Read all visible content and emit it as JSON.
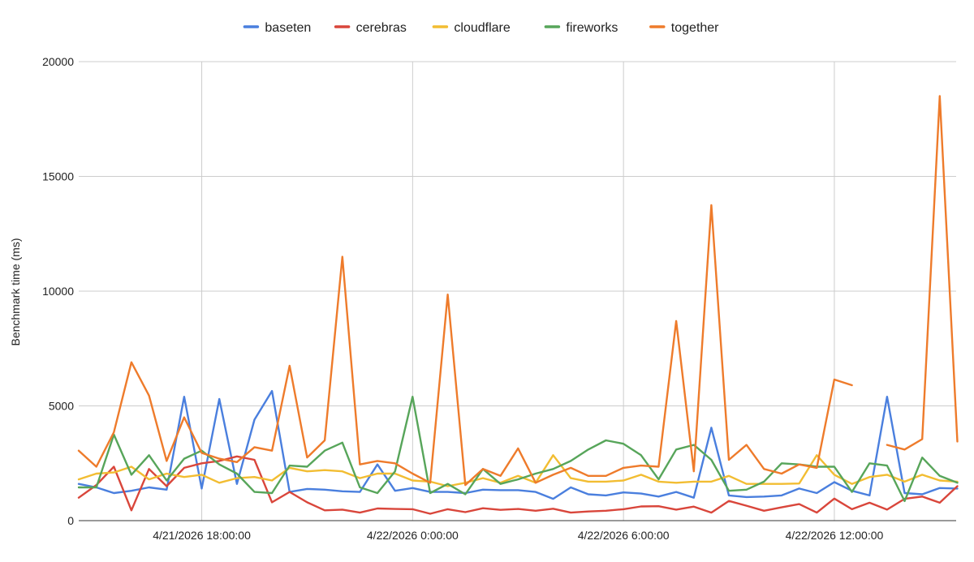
{
  "chart_data": {
    "type": "line",
    "title": "",
    "ylabel": "Benchmark time (ms)",
    "xlabel": "",
    "ylim": [
      0,
      20000
    ],
    "y_ticks": [
      0,
      5000,
      10000,
      15000,
      20000
    ],
    "x_start": "4/21/2026 14:30:00",
    "x_step_minutes": 30,
    "x_tick_labels": [
      {
        "label": "4/21/2026 18:00:00",
        "index": 7
      },
      {
        "label": "4/22/2026 0:00:00",
        "index": 19
      },
      {
        "label": "4/22/2026 6:00:00",
        "index": 31
      },
      {
        "label": "4/22/2026 12:00:00",
        "index": 43
      }
    ],
    "grid": true,
    "legend_position": "top",
    "series": [
      {
        "name": "baseten",
        "color": "#4a7fde",
        "values": [
          1600,
          1450,
          1200,
          1300,
          1450,
          1350,
          5400,
          1400,
          5300,
          1600,
          4400,
          5650,
          1250,
          1380,
          1350,
          1280,
          1250,
          2450,
          1300,
          1420,
          1250,
          1250,
          1200,
          1350,
          1330,
          1330,
          1250,
          950,
          1450,
          1150,
          1100,
          1230,
          1180,
          1050,
          1250,
          1000,
          4050,
          1100,
          1030,
          1050,
          1100,
          1400,
          1200,
          1680,
          1300,
          1100,
          5400,
          1200,
          1150,
          1420,
          1400
        ]
      },
      {
        "name": "cerebras",
        "color": "#d9463b",
        "values": [
          1000,
          1550,
          2350,
          450,
          2250,
          1500,
          2300,
          2500,
          2600,
          2800,
          2650,
          800,
          1250,
          800,
          450,
          480,
          350,
          530,
          510,
          500,
          300,
          500,
          370,
          540,
          470,
          510,
          430,
          520,
          350,
          400,
          430,
          500,
          620,
          630,
          480,
          610,
          350,
          860,
          650,
          430,
          580,
          720,
          350,
          960,
          500,
          780,
          480,
          950,
          1050,
          780,
          1500
        ]
      },
      {
        "name": "cloudflare",
        "color": "#f2bd32",
        "values": [
          1800,
          2050,
          2100,
          2350,
          1800,
          2050,
          1900,
          2000,
          1650,
          1850,
          1900,
          1750,
          2300,
          2150,
          2200,
          2150,
          1850,
          2050,
          2050,
          1750,
          1700,
          1500,
          1650,
          1850,
          1650,
          1950,
          1650,
          2850,
          1850,
          1700,
          1700,
          1750,
          2000,
          1700,
          1650,
          1700,
          1700,
          1950,
          1600,
          1600,
          1600,
          1620,
          2850,
          2000,
          1600,
          1900,
          2000,
          1700,
          2000,
          1750,
          1700
        ]
      },
      {
        "name": "fireworks",
        "color": "#57a55a",
        "values": [
          1450,
          1450,
          3750,
          2000,
          2850,
          1750,
          2700,
          3050,
          2450,
          2050,
          1250,
          1200,
          2400,
          2350,
          3050,
          3400,
          1450,
          1200,
          2150,
          5400,
          1200,
          1600,
          1150,
          2250,
          1600,
          1800,
          2050,
          2250,
          2600,
          3100,
          3500,
          3350,
          2850,
          1800,
          3100,
          3300,
          2650,
          1300,
          1350,
          1700,
          2500,
          2450,
          2350,
          2350,
          1250,
          2500,
          2400,
          850,
          2750,
          1950,
          1650
        ]
      },
      {
        "name": "together",
        "color": "#ee7b2b",
        "values": [
          3050,
          2350,
          3850,
          6900,
          5450,
          2600,
          4500,
          2950,
          2700,
          2550,
          3200,
          3050,
          6750,
          2750,
          3500,
          11500,
          2450,
          2600,
          2500,
          2050,
          1650,
          9850,
          1550,
          2250,
          1950,
          3150,
          1650,
          2000,
          2300,
          1950,
          1950,
          2300,
          2400,
          2350,
          8700,
          2150,
          13750,
          2650,
          3300,
          2250,
          2050,
          2450,
          2300,
          6150,
          5900,
          null,
          3300,
          3100,
          3550,
          18500,
          3450
        ]
      }
    ]
  }
}
